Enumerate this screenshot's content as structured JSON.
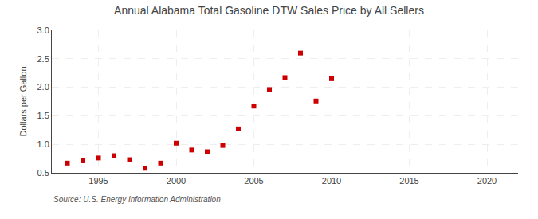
{
  "chart_data": {
    "type": "scatter",
    "title": "Annual Alabama Total Gasoline DTW Sales Price by All Sellers",
    "ylabel": "Dollars per Gallon",
    "source": "Source: U.S. Energy Information Administration",
    "x": [
      1993,
      1994,
      1995,
      1996,
      1997,
      1998,
      1999,
      2000,
      2001,
      2002,
      2003,
      2004,
      2005,
      2006,
      2007,
      2008,
      2009,
      2010
    ],
    "values": [
      0.67,
      0.71,
      0.76,
      0.8,
      0.73,
      0.58,
      0.67,
      1.02,
      0.9,
      0.87,
      0.98,
      1.27,
      1.67,
      1.96,
      2.17,
      2.6,
      1.76,
      2.15
    ],
    "color": "#cc0000",
    "marker": "square",
    "xlim": [
      1992,
      2022
    ],
    "ylim": [
      0.5,
      3.0
    ],
    "xticks": [
      1995,
      2000,
      2005,
      2010,
      2015,
      2020
    ],
    "yticks": [
      0.5,
      {
        "value": 1.0,
        "label": "1.0"
      },
      1.5,
      {
        "value": 2.0,
        "label": "2.0"
      },
      2.5,
      {
        "value": 3.0,
        "label": "3.0"
      }
    ],
    "grid": true
  }
}
